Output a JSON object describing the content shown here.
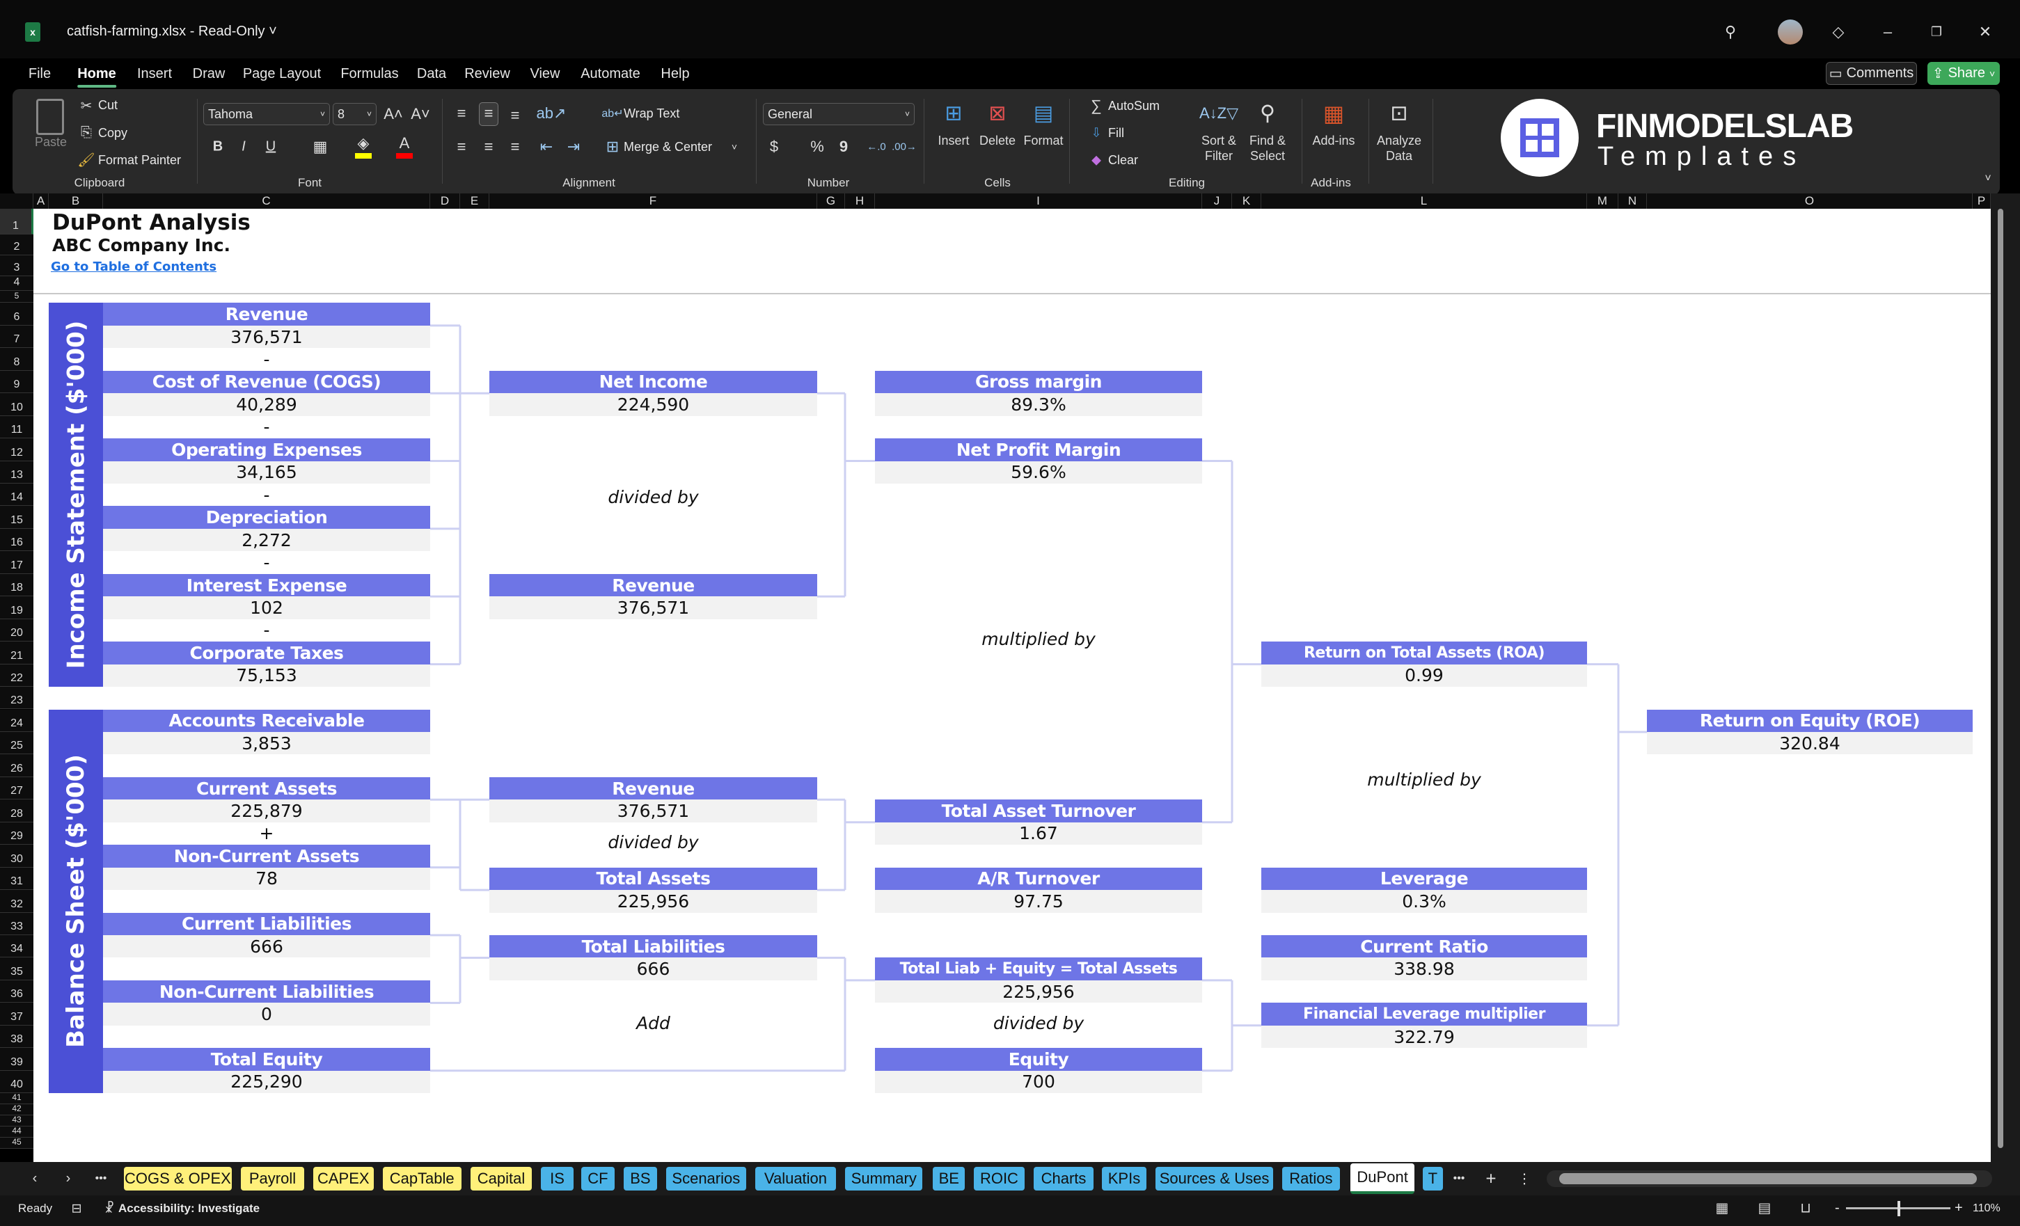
{
  "window": {
    "title": "catfish-farming.xlsx  -  Read-Only",
    "title_chevron": "˅",
    "app_icon": "excel-icon",
    "controls": [
      "search-icon",
      "avatar",
      "diamond-icon",
      "minimize-icon",
      "restore-icon",
      "close-icon"
    ]
  },
  "menu": {
    "items": [
      "File",
      "Home",
      "Insert",
      "Draw",
      "Page Layout",
      "Formulas",
      "Data",
      "Review",
      "View",
      "Automate",
      "Help"
    ],
    "active": "Home",
    "comments": "Comments",
    "share": "Share"
  },
  "ribbon": {
    "clipboard": {
      "paste": "Paste",
      "cut": "Cut",
      "copy": "Copy",
      "format_painter": "Format Painter",
      "group": "Clipboard"
    },
    "font": {
      "name": "Tahoma",
      "size": "8",
      "group": "Font",
      "bold": "B",
      "italic": "I",
      "underline": "U",
      "fill_color": "#FFFF00",
      "font_color": "#FF0000"
    },
    "alignment": {
      "wrap": "Wrap Text",
      "merge": "Merge & Center",
      "group": "Alignment"
    },
    "number": {
      "format": "General",
      "currency": "$",
      "percent": "%",
      "comma": "9",
      "group": "Number"
    },
    "cells": {
      "insert": "Insert",
      "delete": "Delete",
      "format": "Format",
      "group": "Cells"
    },
    "editing": {
      "autosum": "AutoSum",
      "fill": "Fill",
      "clear": "Clear",
      "sort1": "Sort &",
      "sort2": "Filter",
      "find1": "Find &",
      "find2": "Select",
      "group": "Editing"
    },
    "addins": {
      "addins": "Add-ins",
      "analyze1": "Analyze",
      "analyze2": "Data",
      "group": "Add-ins"
    },
    "logo": {
      "brand": "FINMODELSLAB",
      "sub": "Templates",
      "brand_color": "#5B5FE3"
    }
  },
  "grid": {
    "columns": [
      "A",
      "B",
      "C",
      "D",
      "E",
      "F",
      "G",
      "H",
      "I",
      "J",
      "K",
      "L",
      "M",
      "N",
      "O",
      "P"
    ],
    "rows": [
      1,
      2,
      3,
      4,
      5,
      6,
      7,
      8,
      9,
      10,
      11,
      12,
      13,
      14,
      15,
      16,
      17,
      18,
      19,
      20,
      21,
      22,
      23,
      24,
      25,
      26,
      27,
      28,
      29,
      30,
      31,
      32,
      33,
      34,
      35,
      36,
      37,
      38,
      39,
      40,
      41,
      42,
      43,
      44,
      45
    ]
  },
  "sheet": {
    "title": "DuPont Analysis",
    "company": "ABC Company Inc.",
    "toc_link": "Go to Table of Contents",
    "side_labels": {
      "income": "Income Statement ($'000)",
      "balance": "Balance Sheet ($'000)"
    },
    "colors": {
      "header": "#6E75E6",
      "side": "#4B50D6",
      "value_bg": "#F2F2F2",
      "connector": "#CDD0F2",
      "link": "#1F6FE0"
    },
    "boxes": [
      {
        "id": "is_revenue",
        "label": "Revenue",
        "value": "376,571"
      },
      {
        "id": "cogs",
        "label": "Cost of Revenue (COGS)",
        "value": "40,289"
      },
      {
        "id": "opex",
        "label": "Operating Expenses",
        "value": "34,165"
      },
      {
        "id": "dep",
        "label": "Depreciation",
        "value": "2,272"
      },
      {
        "id": "interest",
        "label": "Interest Expense",
        "value": "102"
      },
      {
        "id": "tax",
        "label": "Corporate Taxes",
        "value": "75,153"
      },
      {
        "id": "ar",
        "label": "Accounts Receivable",
        "value": "3,853"
      },
      {
        "id": "ca",
        "label": "Current Assets",
        "value": "225,879"
      },
      {
        "id": "nca",
        "label": "Non-Current Assets",
        "value": "78"
      },
      {
        "id": "cl",
        "label": "Current Liabilities",
        "value": "666"
      },
      {
        "id": "ncl",
        "label": "Non-Current Liabilities",
        "value": "0"
      },
      {
        "id": "te",
        "label": "Total Equity",
        "value": "225,290"
      },
      {
        "id": "ni",
        "label": "Net Income",
        "value": "224,590"
      },
      {
        "id": "rev2",
        "label": "Revenue",
        "value": "376,571"
      },
      {
        "id": "rev3",
        "label": "Revenue",
        "value": "376,571"
      },
      {
        "id": "ta",
        "label": "Total Assets",
        "value": "225,956"
      },
      {
        "id": "tl",
        "label": "Total Liabilities",
        "value": "666"
      },
      {
        "id": "gm",
        "label": "Gross margin",
        "value": "89.3%"
      },
      {
        "id": "npm",
        "label": "Net Profit Margin",
        "value": "59.6%"
      },
      {
        "id": "tat",
        "label": "Total Asset Turnover",
        "value": "1.67"
      },
      {
        "id": "art",
        "label": "A/R Turnover",
        "value": "97.75"
      },
      {
        "id": "tle",
        "label": "Total Liab + Equity = Total Assets",
        "value": "225,956"
      },
      {
        "id": "eq",
        "label": "Equity",
        "value": "700"
      },
      {
        "id": "roa",
        "label": "Return on Total Assets (ROA)",
        "value": "0.99"
      },
      {
        "id": "lev",
        "label": "Leverage",
        "value": "0.3%"
      },
      {
        "id": "cr",
        "label": "Current Ratio",
        "value": "338.98"
      },
      {
        "id": "flm",
        "label": "Financial Leverage multiplier",
        "value": "322.79"
      },
      {
        "id": "roe",
        "label": "Return on Equity (ROE)",
        "value": "320.84"
      }
    ],
    "signs": [
      {
        "id": "m1",
        "text": "-"
      },
      {
        "id": "m2",
        "text": "-"
      },
      {
        "id": "m3",
        "text": "-"
      },
      {
        "id": "m4",
        "text": "-"
      },
      {
        "id": "m5",
        "text": "-"
      },
      {
        "id": "p1",
        "text": "+"
      }
    ],
    "operators": [
      {
        "id": "op_div1",
        "text": "divided by"
      },
      {
        "id": "op_mul1",
        "text": "multiplied by"
      },
      {
        "id": "op_mul2",
        "text": "multiplied by"
      },
      {
        "id": "op_div2",
        "text": "divided by"
      },
      {
        "id": "op_add",
        "text": "Add"
      },
      {
        "id": "op_div3",
        "text": "divided by"
      }
    ]
  },
  "tabs": {
    "items": [
      {
        "label": "COGS & OPEX",
        "color": "#FFF07A"
      },
      {
        "label": "Payroll",
        "color": "#FFF07A"
      },
      {
        "label": "CAPEX",
        "color": "#FFF07A"
      },
      {
        "label": "CapTable",
        "color": "#FFF07A"
      },
      {
        "label": "Capital",
        "color": "#FFF07A"
      },
      {
        "label": "IS",
        "color": "#4AB3E8"
      },
      {
        "label": "CF",
        "color": "#4AB3E8"
      },
      {
        "label": "BS",
        "color": "#4AB3E8"
      },
      {
        "label": "Scenarios",
        "color": "#4AB3E8"
      },
      {
        "label": "Valuation",
        "color": "#4AB3E8"
      },
      {
        "label": "Summary",
        "color": "#4AB3E8"
      },
      {
        "label": "BE",
        "color": "#4AB3E8"
      },
      {
        "label": "ROIC",
        "color": "#4AB3E8"
      },
      {
        "label": "Charts",
        "color": "#4AB3E8"
      },
      {
        "label": "KPIs",
        "color": "#4AB3E8"
      },
      {
        "label": "Sources & Uses",
        "color": "#4AB3E8"
      },
      {
        "label": "Ratios",
        "color": "#4AB3E8"
      },
      {
        "label": "DuPont",
        "color": "#FFFFFF"
      },
      {
        "label": "T",
        "color": "#4AB3E8"
      }
    ],
    "active": "DuPont"
  },
  "status": {
    "ready": "Ready",
    "accessibility": "Accessibility: Investigate",
    "zoom": "110%",
    "zoom_minus": "-",
    "zoom_plus": "+"
  }
}
